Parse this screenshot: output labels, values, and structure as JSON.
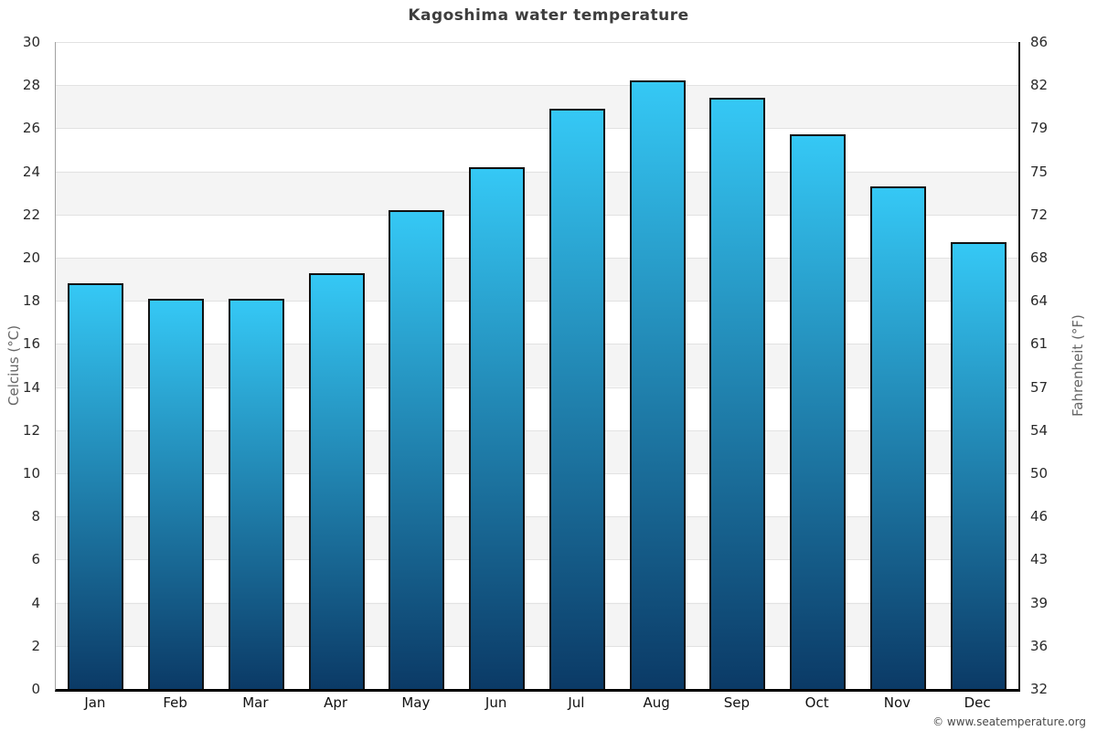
{
  "chart": {
    "title": "Kagoshima water temperature",
    "ylabel_left": "Celcius (°C)",
    "ylabel_right": "Fahrenheit (°F)",
    "footer": "© www.seatemperature.org"
  },
  "chart_data": {
    "type": "bar",
    "title": "Kagoshima water temperature",
    "categories": [
      "Jan",
      "Feb",
      "Mar",
      "Apr",
      "May",
      "Jun",
      "Jul",
      "Aug",
      "Sep",
      "Oct",
      "Nov",
      "Dec"
    ],
    "values": [
      18.8,
      18.1,
      18.1,
      19.3,
      22.2,
      24.2,
      26.9,
      28.2,
      27.4,
      25.7,
      23.3,
      20.7
    ],
    "unit": "°C",
    "xlabel": "",
    "ylabel": "Celcius (°C)",
    "ylabel_right": "Fahrenheit (°F)",
    "ylim": [
      0,
      30
    ],
    "celsius_ticks": [
      30,
      28,
      26,
      24,
      22,
      20,
      18,
      16,
      14,
      12,
      10,
      8,
      6,
      4,
      2,
      0
    ],
    "fahrenheit_ticks": [
      86,
      82,
      79,
      75,
      72,
      68,
      64,
      61,
      57,
      54,
      50,
      46,
      43,
      39,
      36,
      32
    ],
    "grid": true,
    "legend": false,
    "bands_alternating": true,
    "colors": {
      "bar_top": "#35c8f5",
      "bar_bottom": "#0b3a66",
      "bar_border": "#111111",
      "band": "#f4f4f4",
      "gridline": "#e2e2e2",
      "axis_left": "#a0a0a0",
      "axis_right": "#1a1a1a",
      "axis_bottom": "#000000",
      "title_text": "#3d3d3d"
    }
  }
}
